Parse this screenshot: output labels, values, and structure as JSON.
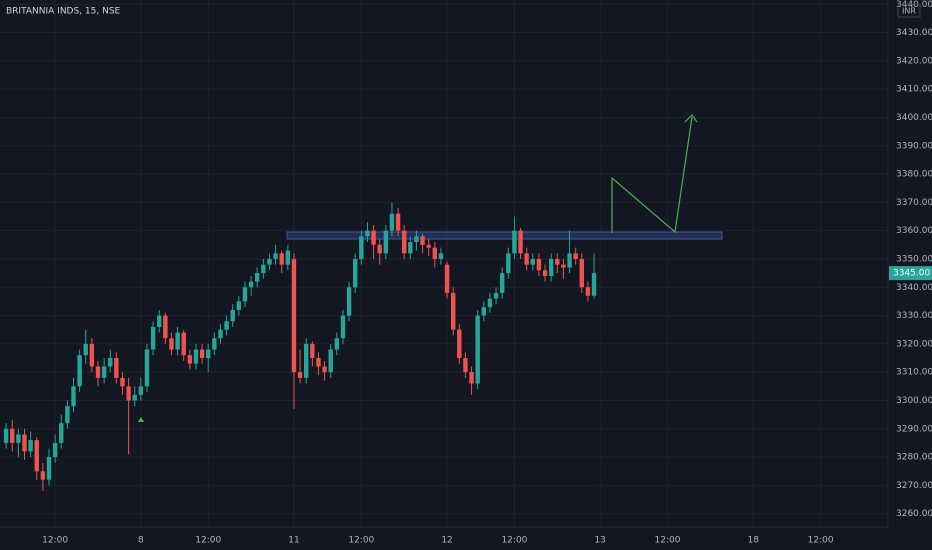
{
  "chart_data": {
    "type": "candlestick",
    "title": "BRITANNIA INDS, 15, NSE",
    "currency": "INR",
    "up_color": "#26a69a",
    "down_color": "#ef5350",
    "grid": true,
    "last_price": {
      "value": 3345,
      "label": "3345.00"
    },
    "xlim": [
      -1,
      144
    ],
    "xticks": [
      {
        "value": 8,
        "label": "12:00"
      },
      {
        "value": 22,
        "label": "8"
      },
      {
        "value": 33,
        "label": "12:00"
      },
      {
        "value": 47,
        "label": "11"
      },
      {
        "value": 58,
        "label": "12:00"
      },
      {
        "value": 72,
        "label": "12"
      },
      {
        "value": 83,
        "label": "12:00"
      },
      {
        "value": 97,
        "label": "13"
      },
      {
        "value": 108,
        "label": "12:00"
      },
      {
        "value": 122,
        "label": "18"
      },
      {
        "value": 133,
        "label": "12:00"
      }
    ],
    "ylim": [
      3255.3,
      3441.5
    ],
    "yticks": [
      {
        "value": 3260,
        "label": "3260.00"
      },
      {
        "value": 3270,
        "label": "3270.00"
      },
      {
        "value": 3280,
        "label": "3280.00"
      },
      {
        "value": 3290,
        "label": "3290.00"
      },
      {
        "value": 3300,
        "label": "3300.00"
      },
      {
        "value": 3310,
        "label": "3310.00"
      },
      {
        "value": 3320,
        "label": "3320.00"
      },
      {
        "value": 3330,
        "label": "3330.00"
      },
      {
        "value": 3340,
        "label": "3340.00"
      },
      {
        "value": 3350,
        "label": "3350.00"
      },
      {
        "value": 3360,
        "label": "3360.00"
      },
      {
        "value": 3370,
        "label": "3370.00"
      },
      {
        "value": 3380,
        "label": "3380.00"
      },
      {
        "value": 3390,
        "label": "3390.00"
      },
      {
        "value": 3400,
        "label": "3400.00"
      },
      {
        "value": 3410,
        "label": "3410.00"
      },
      {
        "value": 3420,
        "label": "3420.00"
      },
      {
        "value": 3430,
        "label": "3430.00"
      },
      {
        "value": 3440,
        "label": "3440.00"
      }
    ],
    "candles": [
      [
        3285,
        3292,
        3283,
        3290
      ],
      [
        3290,
        3293,
        3282,
        3285
      ],
      [
        3285,
        3290,
        3280,
        3288
      ],
      [
        3288,
        3290,
        3279,
        3282
      ],
      [
        3282,
        3289,
        3280,
        3286
      ],
      [
        3286,
        3287,
        3272,
        3275
      ],
      [
        3275,
        3278,
        3268,
        3272
      ],
      [
        3272,
        3283,
        3270,
        3280
      ],
      [
        3280,
        3288,
        3278,
        3285
      ],
      [
        3285,
        3295,
        3283,
        3292
      ],
      [
        3292,
        3300,
        3290,
        3298
      ],
      [
        3298,
        3308,
        3296,
        3305
      ],
      [
        3305,
        3318,
        3303,
        3316
      ],
      [
        3316,
        3325,
        3313,
        3320
      ],
      [
        3320,
        3322,
        3310,
        3312
      ],
      [
        3312,
        3314,
        3305,
        3308
      ],
      [
        3308,
        3315,
        3306,
        3312
      ],
      [
        3312,
        3318,
        3310,
        3315
      ],
      [
        3315,
        3317,
        3306,
        3308
      ],
      [
        3308,
        3310,
        3302,
        3305
      ],
      [
        3305,
        3308,
        3281,
        3300
      ],
      [
        3300,
        3305,
        3298,
        3302
      ],
      [
        3302,
        3308,
        3300,
        3305
      ],
      [
        3305,
        3320,
        3303,
        3318
      ],
      [
        3318,
        3328,
        3316,
        3326
      ],
      [
        3326,
        3332,
        3324,
        3330
      ],
      [
        3330,
        3331,
        3320,
        3322
      ],
      [
        3322,
        3324,
        3316,
        3318
      ],
      [
        3318,
        3326,
        3316,
        3324
      ],
      [
        3324,
        3325,
        3314,
        3316
      ],
      [
        3316,
        3318,
        3311,
        3313
      ],
      [
        3313,
        3320,
        3311,
        3318
      ],
      [
        3318,
        3320,
        3313,
        3315
      ],
      [
        3315,
        3320,
        3310,
        3318
      ],
      [
        3318,
        3324,
        3316,
        3322
      ],
      [
        3322,
        3327,
        3320,
        3325
      ],
      [
        3325,
        3330,
        3323,
        3328
      ],
      [
        3328,
        3334,
        3326,
        3332
      ],
      [
        3332,
        3337,
        3330,
        3335
      ],
      [
        3335,
        3342,
        3333,
        3340
      ],
      [
        3340,
        3344,
        3337,
        3342
      ],
      [
        3342,
        3347,
        3340,
        3345
      ],
      [
        3345,
        3350,
        3343,
        3348
      ],
      [
        3348,
        3352,
        3346,
        3350
      ],
      [
        3350,
        3355,
        3348,
        3352
      ],
      [
        3352,
        3353,
        3345,
        3348
      ],
      [
        3348,
        3355,
        3346,
        3353
      ],
      [
        3350,
        3352,
        3297,
        3310
      ],
      [
        3310,
        3318,
        3306,
        3308
      ],
      [
        3308,
        3322,
        3306,
        3320
      ],
      [
        3320,
        3321,
        3312,
        3315
      ],
      [
        3315,
        3317,
        3309,
        3312
      ],
      [
        3312,
        3314,
        3307,
        3310
      ],
      [
        3310,
        3320,
        3308,
        3318
      ],
      [
        3318,
        3324,
        3316,
        3322
      ],
      [
        3322,
        3332,
        3320,
        3330
      ],
      [
        3330,
        3342,
        3328,
        3340
      ],
      [
        3340,
        3352,
        3338,
        3350
      ],
      [
        3350,
        3360,
        3348,
        3358
      ],
      [
        3358,
        3363,
        3356,
        3360
      ],
      [
        3360,
        3362,
        3350,
        3355
      ],
      [
        3355,
        3357,
        3348,
        3352
      ],
      [
        3352,
        3362,
        3350,
        3360
      ],
      [
        3360,
        3370,
        3358,
        3366
      ],
      [
        3366,
        3368,
        3358,
        3360
      ],
      [
        3360,
        3362,
        3350,
        3352
      ],
      [
        3352,
        3358,
        3350,
        3356
      ],
      [
        3356,
        3360,
        3353,
        3358
      ],
      [
        3358,
        3359,
        3352,
        3355
      ],
      [
        3355,
        3357,
        3351,
        3354
      ],
      [
        3354,
        3356,
        3347,
        3350
      ],
      [
        3350,
        3354,
        3348,
        3352
      ],
      [
        3348,
        3349,
        3336,
        3338
      ],
      [
        3338,
        3340,
        3323,
        3325
      ],
      [
        3325,
        3327,
        3313,
        3315
      ],
      [
        3315,
        3317,
        3308,
        3310
      ],
      [
        3310,
        3312,
        3302,
        3306
      ],
      [
        3306,
        3332,
        3304,
        3330
      ],
      [
        3330,
        3335,
        3328,
        3333
      ],
      [
        3333,
        3338,
        3331,
        3336
      ],
      [
        3336,
        3340,
        3334,
        3338
      ],
      [
        3338,
        3347,
        3336,
        3345
      ],
      [
        3345,
        3354,
        3343,
        3352
      ],
      [
        3352,
        3365,
        3350,
        3360
      ],
      [
        3360,
        3361,
        3350,
        3352
      ],
      [
        3352,
        3354,
        3346,
        3348
      ],
      [
        3348,
        3352,
        3346,
        3350
      ],
      [
        3350,
        3352,
        3344,
        3346
      ],
      [
        3346,
        3348,
        3342,
        3344
      ],
      [
        3344,
        3352,
        3342,
        3350
      ],
      [
        3350,
        3352,
        3345,
        3348
      ],
      [
        3348,
        3350,
        3343,
        3347
      ],
      [
        3347,
        3360,
        3345,
        3352
      ],
      [
        3352,
        3354,
        3348,
        3350
      ],
      [
        3350,
        3352,
        3338,
        3340
      ],
      [
        3340,
        3342,
        3335,
        3337
      ],
      [
        3337,
        3352,
        3336,
        3345
      ]
    ]
  }
}
